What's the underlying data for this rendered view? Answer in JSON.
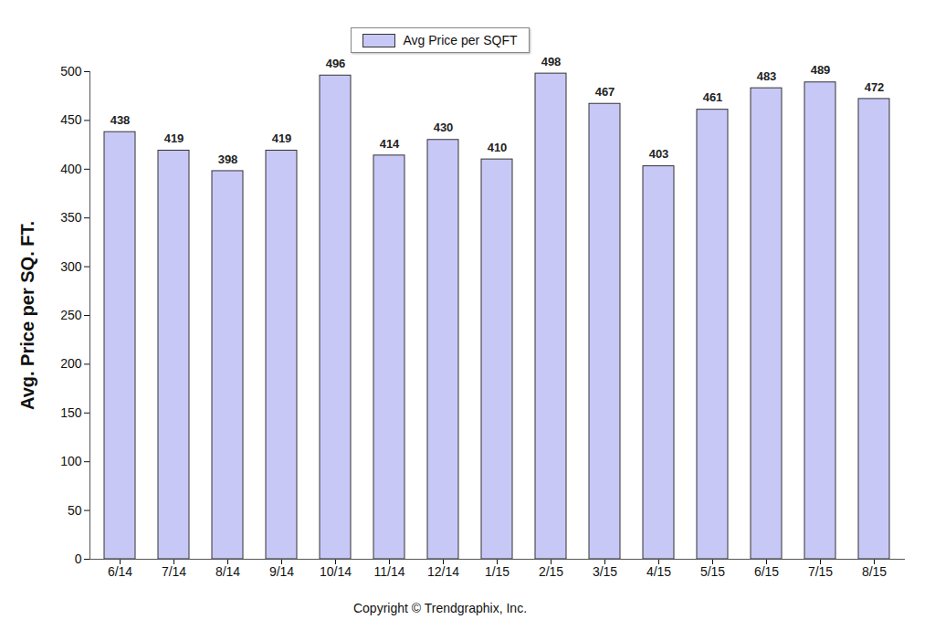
{
  "chart_data": {
    "type": "bar",
    "y_label": "Avg. Price per SQ. FT.",
    "caption": "Copyright © Trendgraphix, Inc.",
    "categories": [
      "6/14",
      "7/14",
      "8/14",
      "9/14",
      "10/14",
      "11/14",
      "12/14",
      "1/15",
      "2/15",
      "3/15",
      "4/15",
      "5/15",
      "6/15",
      "7/15",
      "8/15"
    ],
    "series": [
      {
        "name": "Avg Price per SQFT",
        "color": "#c8c8f7",
        "values": [
          438,
          419,
          398,
          419,
          496,
          414,
          430,
          410,
          498,
          467,
          403,
          461,
          483,
          489,
          472
        ]
      }
    ],
    "ylim": [
      0,
      500
    ],
    "yticks": [
      0,
      50,
      100,
      150,
      200,
      250,
      300,
      350,
      400,
      450,
      500
    ],
    "grid": false,
    "legend": "top",
    "data_labels": true
  }
}
